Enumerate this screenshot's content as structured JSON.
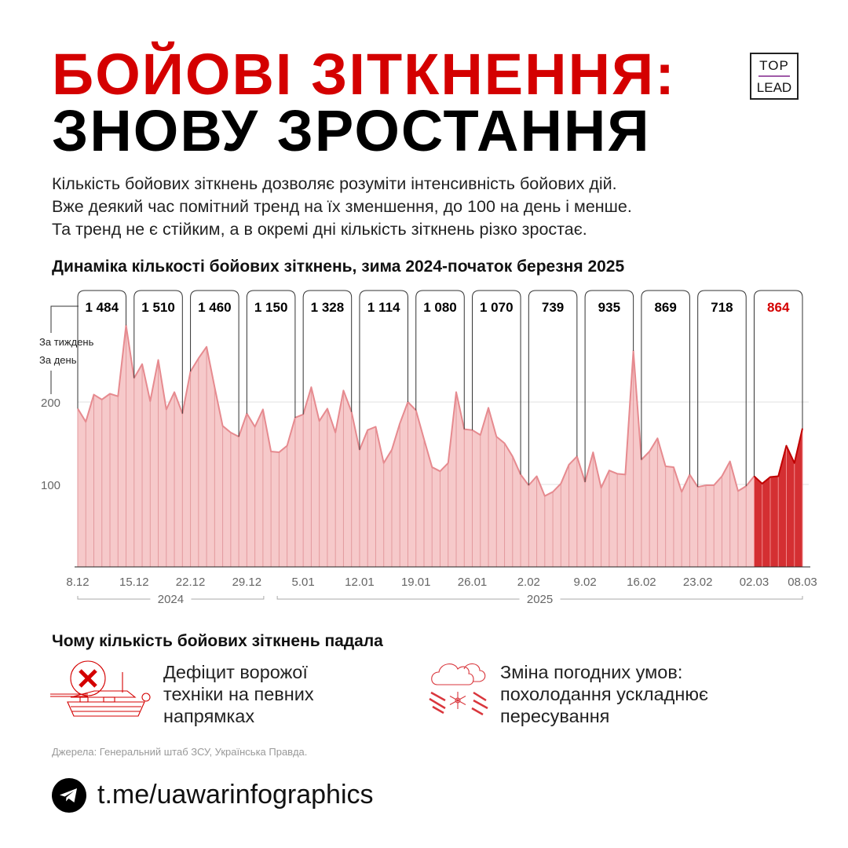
{
  "header": {
    "title_line1": "БОЙОВІ ЗІТКНЕННЯ:",
    "title_line2": "ЗНОВУ ЗРОСТАННЯ",
    "logo_top": "TOP",
    "logo_bottom": "LEAD"
  },
  "intro": [
    "Кількість бойових зіткнень дозволяє розуміти інтенсивність бойових дій.",
    "Вже деякий час помітний тренд на їх зменшення, до 100 на день і менше.",
    "Та тренд не є стійким, а в окремі дні кількість зіткнень різко зростає."
  ],
  "colors": {
    "accent": "#d40000",
    "area_fill": "#f6c9ca",
    "area_line": "#e68a8f",
    "highlight_fill": "#d42f32",
    "highlight_line": "#c00000"
  },
  "chart_data": {
    "type": "area",
    "title": "Динаміка кількості бойових зіткнень, зима 2024-початок березня 2025",
    "legend": {
      "weekly": "За тиждень",
      "daily": "За день"
    },
    "ylim": [
      0,
      300
    ],
    "yticks": [
      100,
      200
    ],
    "grid": true,
    "xticks": [
      "8.12",
      "15.12",
      "22.12",
      "29.12",
      "5.01",
      "12.01",
      "19.01",
      "26.01",
      "2.02",
      "9.02",
      "16.02",
      "23.02",
      "02.03",
      "08.03"
    ],
    "years": [
      "2024",
      "2025"
    ],
    "x": [
      "8.12",
      "9.12",
      "10.12",
      "11.12",
      "12.12",
      "13.12",
      "14.12",
      "15.12",
      "16.12",
      "17.12",
      "18.12",
      "19.12",
      "20.12",
      "21.12",
      "22.12",
      "23.12",
      "24.12",
      "25.12",
      "26.12",
      "27.12",
      "28.12",
      "29.12",
      "30.12",
      "31.12",
      "1.01",
      "2.01",
      "3.01",
      "4.01",
      "5.01",
      "6.01",
      "7.01",
      "8.01",
      "9.01",
      "10.01",
      "11.01",
      "12.01",
      "13.01",
      "14.01",
      "15.01",
      "16.01",
      "17.01",
      "18.01",
      "19.01",
      "20.01",
      "21.01",
      "22.01",
      "23.01",
      "24.01",
      "25.01",
      "26.01",
      "27.01",
      "28.01",
      "29.01",
      "30.01",
      "31.01",
      "1.02",
      "2.02",
      "3.02",
      "4.02",
      "5.02",
      "6.02",
      "7.02",
      "8.02",
      "9.02",
      "10.02",
      "11.02",
      "12.02",
      "13.02",
      "14.02",
      "15.02",
      "16.02",
      "17.02",
      "18.02",
      "19.02",
      "20.02",
      "21.02",
      "22.02",
      "23.02",
      "24.02",
      "25.02",
      "26.02",
      "27.02",
      "28.02",
      "1.03",
      "2.03",
      "3.03",
      "4.03",
      "5.03",
      "6.03",
      "7.03",
      "8.03"
    ],
    "daily": [
      192,
      176,
      209,
      203,
      210,
      207,
      293,
      229,
      246,
      201,
      251,
      191,
      212,
      186,
      237,
      253,
      267,
      218,
      171,
      163,
      158,
      186,
      170,
      191,
      140,
      139,
      147,
      181,
      185,
      218,
      177,
      192,
      163,
      214,
      188,
      142,
      166,
      170,
      126,
      142,
      174,
      200,
      190,
      155,
      121,
      116,
      126,
      212,
      167,
      166,
      160,
      193,
      158,
      150,
      134,
      112,
      99,
      110,
      86,
      91,
      101,
      124,
      134,
      103,
      139,
      96,
      117,
      113,
      112,
      262,
      130,
      140,
      156,
      122,
      121,
      91,
      112,
      97,
      99,
      99,
      110,
      128,
      92,
      98,
      110,
      101,
      109,
      110,
      147,
      126,
      168
    ],
    "weekly": [
      {
        "value": "1 484",
        "highlight": false
      },
      {
        "value": "1 510",
        "highlight": false
      },
      {
        "value": "1 460",
        "highlight": false
      },
      {
        "value": "1 150",
        "highlight": false
      },
      {
        "value": "1 328",
        "highlight": false
      },
      {
        "value": "1 114",
        "highlight": false
      },
      {
        "value": "1 080",
        "highlight": false
      },
      {
        "value": "1 070",
        "highlight": false
      },
      {
        "value": "739",
        "highlight": false
      },
      {
        "value": "935",
        "highlight": false
      },
      {
        "value": "869",
        "highlight": false
      },
      {
        "value": "718",
        "highlight": false
      },
      {
        "value": "864",
        "highlight": true
      }
    ]
  },
  "reasons": {
    "heading": "Чому кількість бойових зіткнень падала",
    "items": [
      {
        "icon": "destroyed-tank-icon",
        "lines": [
          "Дефіцит ворожої",
          "техніки на певних",
          "напрямках"
        ]
      },
      {
        "icon": "snow-cloud-icon",
        "lines": [
          "Зміна погодних умов:",
          "похолодання ускладнює",
          "пересування"
        ]
      }
    ]
  },
  "footer": {
    "sources": "Джерела: Генеральний штаб ЗСУ, Українська Правда.",
    "link": "t.me/uawarinfographics",
    "link_icon": "telegram-icon"
  }
}
